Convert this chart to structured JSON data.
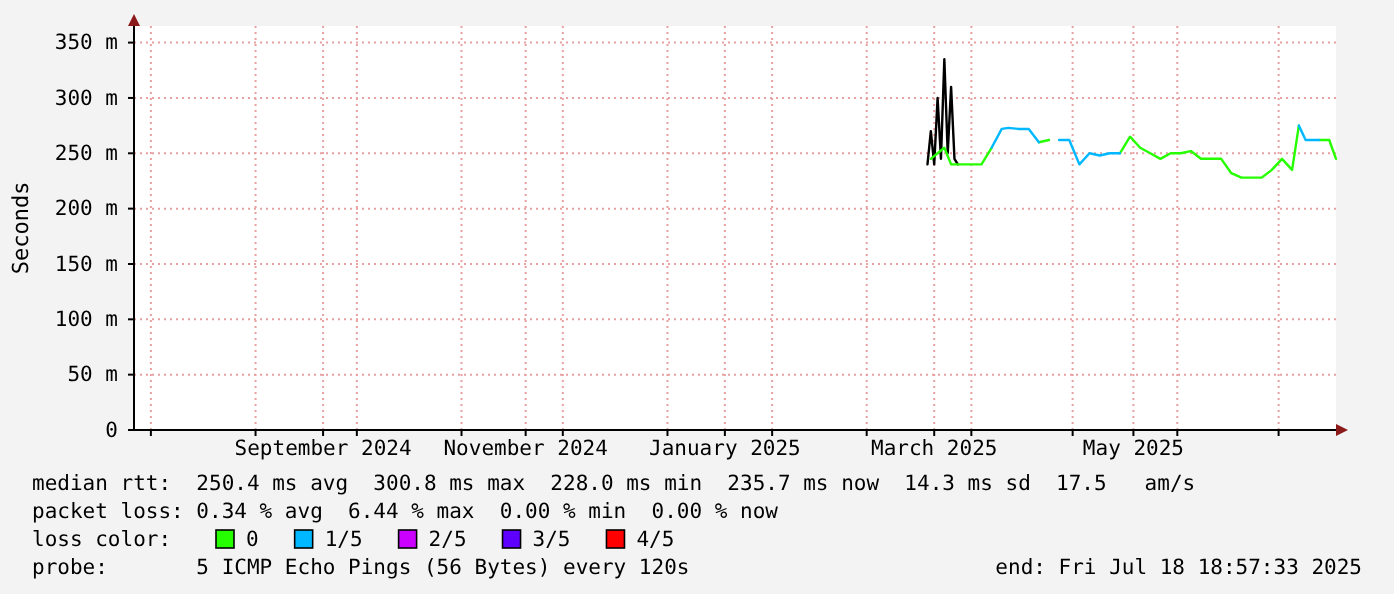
{
  "chart_data": {
    "type": "line",
    "ylabel": "Seconds",
    "legend_title": "loss color:",
    "legend": "bottom",
    "grid": true,
    "line_style": "solid",
    "marker": "none",
    "xlim": [
      "2024-07-27",
      "2025-07-18"
    ],
    "ylim": [
      0,
      365
    ],
    "yticks": [
      0,
      {
        "value": 50,
        "label": "50 m"
      },
      {
        "value": 100,
        "label": "100 m"
      },
      {
        "value": 150,
        "label": "150 m"
      },
      {
        "value": 200,
        "label": "200 m"
      },
      {
        "value": 250,
        "label": "250 m"
      },
      {
        "value": 300,
        "label": "300 m"
      },
      {
        "value": 350,
        "label": "350 m"
      }
    ],
    "xticks": [
      {
        "value": "2024-08-01",
        "label": null
      },
      {
        "value": "2024-09-01",
        "label": null
      },
      {
        "value": "2024-09-21",
        "label": "September 2024"
      },
      {
        "value": "2024-10-01",
        "label": null
      },
      {
        "value": "2024-11-01",
        "label": null
      },
      {
        "value": "2024-11-20",
        "label": "November 2024"
      },
      {
        "value": "2024-12-01",
        "label": null
      },
      {
        "value": "2025-01-01",
        "label": null
      },
      {
        "value": "2025-01-18",
        "label": "January 2025"
      },
      {
        "value": "2025-02-01",
        "label": null
      },
      {
        "value": "2025-03-01",
        "label": null
      },
      {
        "value": "2025-03-21",
        "label": "March 2025"
      },
      {
        "value": "2025-04-01",
        "label": null
      },
      {
        "value": "2025-05-01",
        "label": null
      },
      {
        "value": "2025-05-19",
        "label": "May 2025"
      },
      {
        "value": "2025-06-01",
        "label": null
      },
      {
        "value": "2025-07-01",
        "label": null
      }
    ],
    "x": [
      "2025-03-20",
      "2025-03-22",
      "2025-03-24",
      "2025-03-26",
      "2025-03-29",
      "2025-04-01",
      "2025-04-04",
      "2025-04-07",
      "2025-04-10",
      "2025-04-12",
      "2025-04-15",
      "2025-04-18",
      "2025-04-21",
      "2025-04-24",
      "2025-04-27",
      "2025-04-30",
      "2025-05-03",
      "2025-05-06",
      "2025-05-09",
      "2025-05-12",
      "2025-05-15",
      "2025-05-18",
      "2025-05-21",
      "2025-05-24",
      "2025-05-27",
      "2025-05-30",
      "2025-06-02",
      "2025-06-05",
      "2025-06-08",
      "2025-06-11",
      "2025-06-14",
      "2025-06-17",
      "2025-06-20",
      "2025-06-23",
      "2025-06-26",
      "2025-06-29",
      "2025-07-02",
      "2025-07-05",
      "2025-07-07",
      "2025-07-09",
      "2025-07-11",
      "2025-07-13",
      "2025-07-16",
      "2025-07-18"
    ],
    "series": [
      {
        "color": "#000000",
        "x": [
          "2025-03-19",
          "2025-03-20",
          "2025-03-21",
          "2025-03-22",
          "2025-03-23",
          "2025-03-24",
          "2025-03-25",
          "2025-03-26",
          "2025-03-27",
          "2025-03-28"
        ],
        "values": [
          240,
          270,
          240,
          300,
          245,
          335,
          250,
          310,
          245,
          240
        ]
      },
      {
        "name": "0",
        "color": "#26ff00",
        "values": [
          245,
          250,
          255,
          240,
          240,
          240,
          240,
          255,
          null,
          null,
          null,
          null,
          260,
          262,
          null,
          null,
          null,
          null,
          null,
          null,
          250,
          265,
          255,
          250,
          245,
          250,
          250,
          252,
          245,
          245,
          245,
          232,
          228,
          228,
          228,
          235,
          245,
          235,
          275,
          null,
          null,
          262,
          262,
          245
        ]
      },
      {
        "name": "1/5",
        "color": "#00b8ff",
        "values": [
          null,
          null,
          null,
          null,
          null,
          null,
          null,
          255,
          272,
          273,
          272,
          272,
          260,
          null,
          262,
          262,
          240,
          250,
          248,
          250,
          250,
          null,
          null,
          null,
          null,
          null,
          null,
          null,
          null,
          null,
          null,
          null,
          null,
          null,
          null,
          null,
          null,
          null,
          275,
          262,
          262,
          262,
          null,
          null
        ]
      },
      {
        "name": "2/5",
        "color": "#cc00ff",
        "values": [
          null,
          null,
          null,
          null,
          null,
          null,
          null,
          null,
          null,
          null,
          null,
          null,
          null,
          null,
          null,
          null,
          null,
          null,
          null,
          null,
          null,
          null,
          null,
          null,
          null,
          null,
          null,
          null,
          null,
          null,
          null,
          null,
          null,
          null,
          null,
          null,
          null,
          null,
          null,
          null,
          null,
          null,
          null,
          null
        ]
      },
      {
        "name": "3/5",
        "color": "#5e00ff",
        "values": [
          null,
          null,
          null,
          null,
          null,
          null,
          null,
          null,
          null,
          null,
          null,
          null,
          null,
          null,
          null,
          null,
          null,
          null,
          null,
          null,
          null,
          null,
          null,
          null,
          null,
          null,
          null,
          null,
          null,
          null,
          null,
          null,
          null,
          null,
          null,
          null,
          null,
          null,
          null,
          null,
          null,
          null,
          null,
          null
        ]
      },
      {
        "name": "4/5",
        "color": "#ff0000",
        "values": [
          null,
          null,
          null,
          null,
          null,
          null,
          null,
          null,
          null,
          null,
          null,
          null,
          null,
          null,
          null,
          null,
          null,
          null,
          null,
          null,
          null,
          null,
          null,
          null,
          null,
          null,
          null,
          null,
          null,
          null,
          null,
          null,
          null,
          null,
          null,
          null,
          null,
          null,
          null,
          null,
          null,
          null,
          null,
          null
        ]
      }
    ],
    "annotations": [
      "median rtt:  250.4 ms avg  300.8 ms max  228.0 ms min  235.7 ms now  14.3 ms sd  17.5   am/s",
      "packet loss: 0.34 % avg  6.44 % max  0.00 % min  0.00 % now",
      "probe:       5 ICMP Echo Pings (56 Bytes) every 120s",
      "end: Fri Jul 18 18:57:33 2025"
    ]
  }
}
